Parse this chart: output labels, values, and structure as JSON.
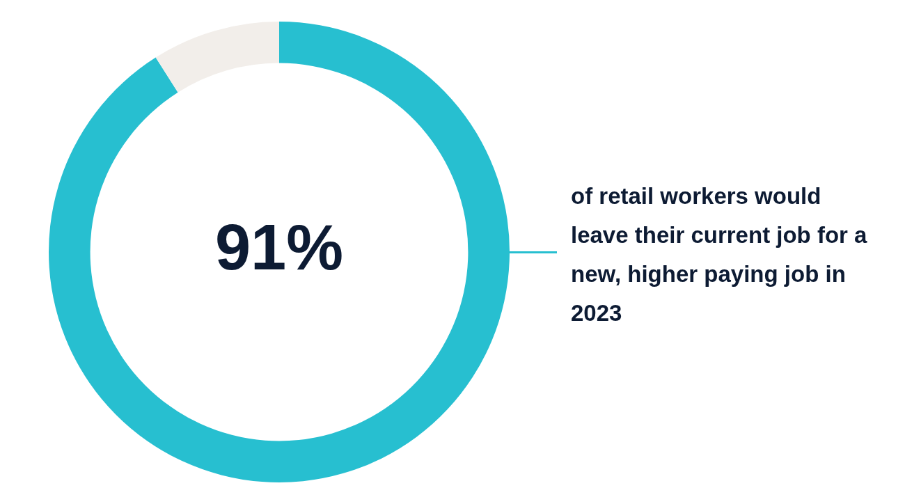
{
  "chart_data": {
    "type": "donut",
    "categories": [
      null,
      null
    ],
    "values": [
      91,
      9
    ],
    "colors": [
      "#27bfd0",
      "#f2eeea"
    ],
    "value_labels": [
      "91%",
      null
    ],
    "annotations": [
      "of retail workers would leave their current job for a new, higher paying job in 2023"
    ]
  }
}
